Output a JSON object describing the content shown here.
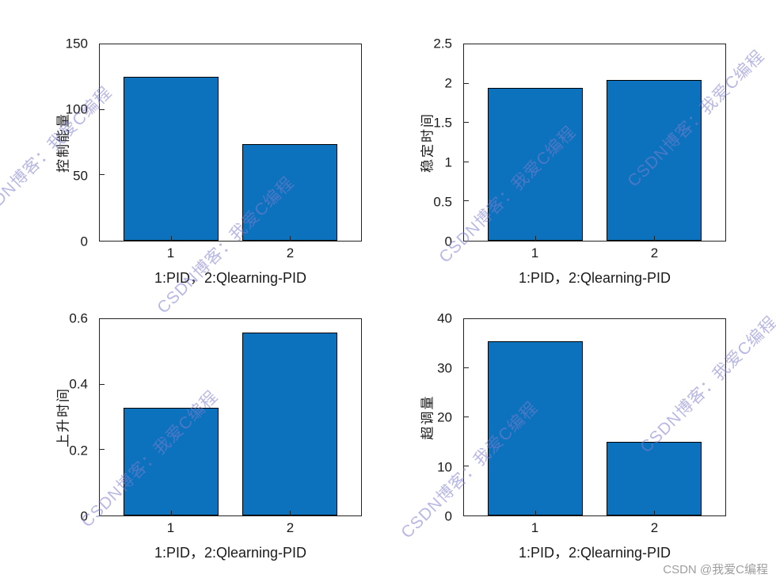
{
  "watermark": {
    "diagonal_text": "CSDN博客：我爱C编程",
    "corner_text": "CSDN @我爱C编程"
  },
  "style": {
    "bar_fill": "#0d72bd",
    "bar_edge": "#000000",
    "axis_color": "#222222",
    "watermark_color": "#7d7dcd"
  },
  "chart_data": [
    {
      "type": "bar",
      "ylabel": "控制能量",
      "xlabel": "1:PID，2:Qlearning-PID",
      "categories": [
        "1",
        "2"
      ],
      "values": [
        125,
        74
      ],
      "ylim": [
        0,
        150
      ],
      "yticks": [
        0,
        50,
        100,
        150
      ],
      "grid": false,
      "legend": null
    },
    {
      "type": "bar",
      "ylabel": "稳定时间",
      "xlabel": "1:PID，2:Qlearning-PID",
      "categories": [
        "1",
        "2"
      ],
      "values": [
        1.95,
        2.05
      ],
      "ylim": [
        0,
        2.5
      ],
      "yticks": [
        0,
        0.5,
        1,
        1.5,
        2,
        2.5
      ],
      "grid": false,
      "legend": null
    },
    {
      "type": "bar",
      "ylabel": "上升时间",
      "xlabel": "1:PID，2:Qlearning-PID",
      "categories": [
        "1",
        "2"
      ],
      "values": [
        0.33,
        0.56
      ],
      "ylim": [
        0,
        0.6
      ],
      "yticks": [
        0,
        0.2,
        0.4,
        0.6
      ],
      "grid": false,
      "legend": null
    },
    {
      "type": "bar",
      "ylabel": "超调量",
      "xlabel": "1:PID，2:Qlearning-PID",
      "categories": [
        "1",
        "2"
      ],
      "values": [
        35.5,
        15
      ],
      "ylim": [
        0,
        40
      ],
      "yticks": [
        0,
        10,
        20,
        30,
        40
      ],
      "grid": false,
      "legend": null
    }
  ]
}
